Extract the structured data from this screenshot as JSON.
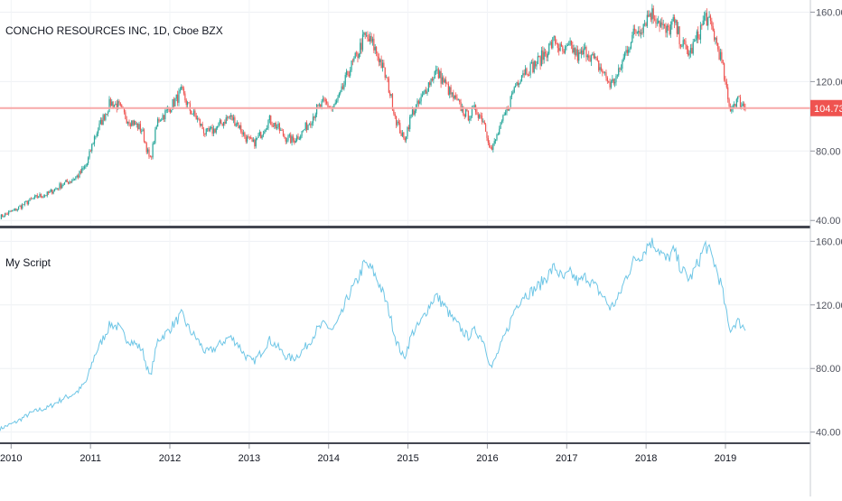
{
  "chart_data": [
    {
      "type": "candlestick",
      "title": "CONCHO RESOURCES INC, 1D, Cboe BZX",
      "last_price_label": "104.73",
      "last_price": 104.73,
      "y_ticks": [
        "160.00",
        "120.00",
        "80.00",
        "40.00"
      ],
      "ylim": [
        37,
        167
      ],
      "grid": true,
      "colors": {
        "up": "#26a69a",
        "down": "#ef5350",
        "last_price_line": "#f7a8a8",
        "last_price_badge": "#ef5350"
      }
    },
    {
      "type": "line",
      "title": "My Script",
      "y_ticks": [
        "160.00",
        "120.00",
        "80.00",
        "40.00"
      ],
      "ylim": [
        33,
        167
      ],
      "grid": true,
      "colors": {
        "line": "#6ec6e6"
      }
    }
  ],
  "x_axis": {
    "ticks": [
      "2010",
      "2011",
      "2012",
      "2013",
      "2014",
      "2015",
      "2016",
      "2017",
      "2018",
      "2019"
    ],
    "range": [
      2009.86,
      2020.07
    ]
  },
  "price_series": {
    "x": [
      2009.86,
      2009.95,
      2010.05,
      2010.15,
      2010.25,
      2010.35,
      2010.45,
      2010.55,
      2010.65,
      2010.75,
      2010.85,
      2010.95,
      2011.05,
      2011.15,
      2011.25,
      2011.35,
      2011.45,
      2011.55,
      2011.65,
      2011.75,
      2011.85,
      2011.95,
      2012.05,
      2012.15,
      2012.25,
      2012.35,
      2012.45,
      2012.55,
      2012.65,
      2012.75,
      2012.85,
      2012.95,
      2013.05,
      2013.15,
      2013.25,
      2013.35,
      2013.45,
      2013.55,
      2013.65,
      2013.75,
      2013.85,
      2013.95,
      2014.05,
      2014.15,
      2014.25,
      2014.35,
      2014.45,
      2014.55,
      2014.65,
      2014.75,
      2014.85,
      2014.95,
      2015.05,
      2015.15,
      2015.25,
      2015.35,
      2015.45,
      2015.55,
      2015.65,
      2015.75,
      2015.85,
      2015.95,
      2016.05,
      2016.15,
      2016.25,
      2016.35,
      2016.45,
      2016.55,
      2016.65,
      2016.75,
      2016.85,
      2016.95,
      2017.05,
      2017.15,
      2017.25,
      2017.35,
      2017.45,
      2017.55,
      2017.65,
      2017.75,
      2017.85,
      2017.95,
      2018.05,
      2018.15,
      2018.25,
      2018.35,
      2018.45,
      2018.55,
      2018.65,
      2018.75,
      2018.85,
      2018.95,
      2019.05,
      2019.15,
      2019.25
    ],
    "y": [
      42,
      44,
      46,
      49,
      52,
      54,
      55,
      58,
      61,
      63,
      66,
      72,
      88,
      98,
      108,
      106,
      99,
      96,
      92,
      74,
      98,
      102,
      108,
      114,
      104,
      98,
      90,
      92,
      96,
      100,
      96,
      88,
      84,
      90,
      98,
      94,
      88,
      86,
      90,
      96,
      104,
      108,
      104,
      112,
      126,
      134,
      146,
      142,
      132,
      118,
      98,
      86,
      102,
      108,
      118,
      126,
      120,
      112,
      106,
      100,
      104,
      98,
      80,
      92,
      104,
      118,
      126,
      128,
      132,
      138,
      144,
      136,
      140,
      134,
      138,
      132,
      126,
      118,
      124,
      138,
      148,
      152,
      160,
      156,
      148,
      154,
      142,
      136,
      146,
      158,
      148,
      132,
      104,
      110,
      105
    ]
  }
}
